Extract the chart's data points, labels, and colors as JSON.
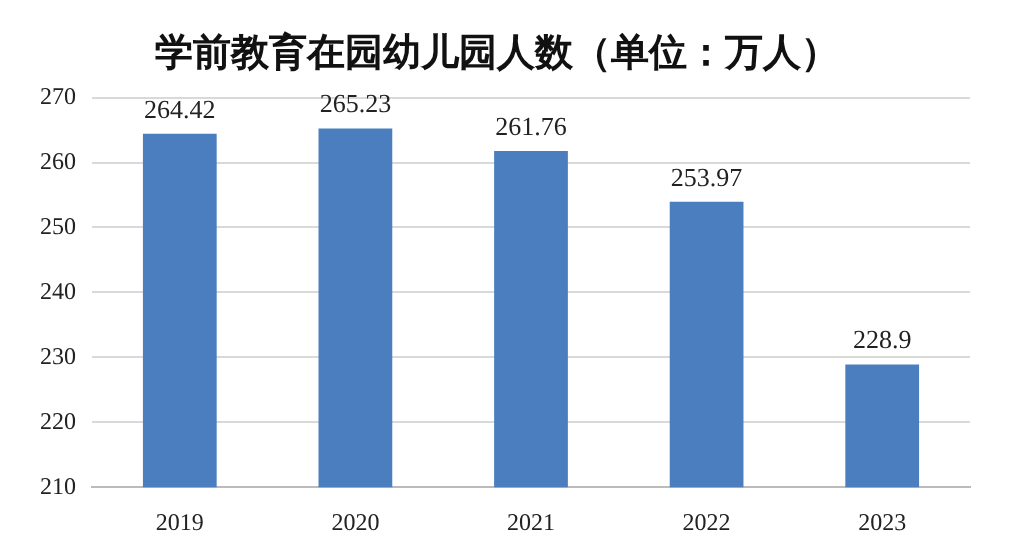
{
  "chart_data": {
    "type": "bar",
    "title": "学前教育在园幼儿园人数（单位：万人）",
    "categories": [
      "2019",
      "2020",
      "2021",
      "2022",
      "2023"
    ],
    "values": [
      264.42,
      265.23,
      261.76,
      253.97,
      228.9
    ],
    "color": "#4a7ebf",
    "ylim": [
      210,
      270
    ],
    "yticks": [
      210,
      220,
      230,
      240,
      250,
      260,
      270
    ],
    "grid": "y",
    "data_labels": true
  }
}
